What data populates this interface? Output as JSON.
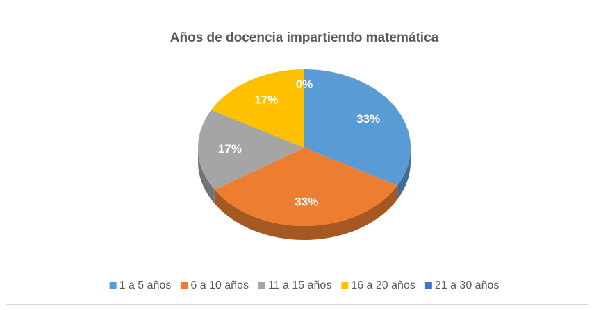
{
  "chart_data": {
    "type": "pie",
    "title": "Años de docencia impartiendo matemática",
    "categories": [
      "1 a 5 años",
      "6 a 10 años",
      "11 a 15 años",
      "16 a 20 años",
      "21 a 30 años"
    ],
    "values": [
      33,
      33,
      17,
      17,
      0
    ],
    "value_labels": [
      "33%",
      "33%",
      "17%",
      "17%",
      "0%"
    ],
    "colors": [
      "#5b9bd5",
      "#ed7d31",
      "#a5a5a5",
      "#ffc000",
      "#4472c4"
    ],
    "legend": "bottom"
  }
}
